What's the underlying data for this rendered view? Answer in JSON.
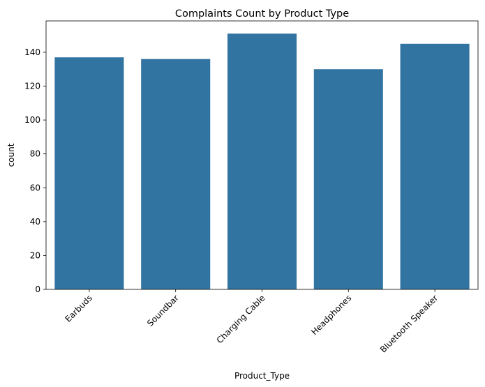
{
  "chart_data": {
    "type": "bar",
    "title": "Complaints Count by Product Type",
    "xlabel": "Product_Type",
    "ylabel": "count",
    "categories": [
      "Earbuds",
      "Soundbar",
      "Charging Cable",
      "Headphones",
      "Bluetooth Speaker"
    ],
    "values": [
      137,
      136,
      151,
      130,
      145
    ],
    "ylim": [
      0,
      158.5
    ],
    "yticks": [
      0,
      20,
      40,
      60,
      80,
      100,
      120,
      140
    ],
    "xtick_rotation_deg": 45,
    "bar_color": "#3274a1",
    "grid": false
  }
}
